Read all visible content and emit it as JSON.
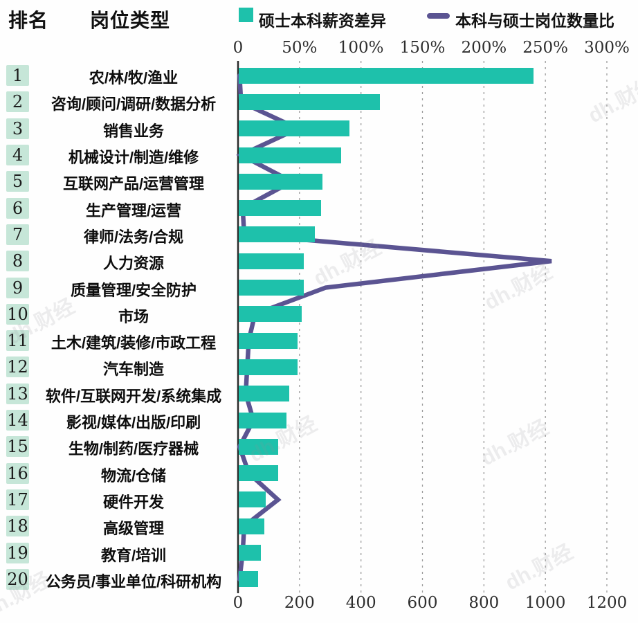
{
  "header": {
    "rank_col": "排名",
    "type_col": "岗位类型"
  },
  "legend": {
    "bar": {
      "label": "硕士本科薪资差异",
      "swatch": "teal-square-icon"
    },
    "line": {
      "label": "本科与硕士岗位数量比",
      "swatch": "purple-dash-icon"
    }
  },
  "watermark_text": "dh.财经",
  "colors": {
    "bar_teal": "#1ec1ab",
    "line_purple": "#5b5492",
    "rank_badge_bg": "#c6e6d8",
    "axis_line": "#2b2b2b",
    "gridline": "#9b9b9b"
  },
  "chart_data": {
    "type": "bar",
    "subtype": "horizontal bars with overlaid line series",
    "title": "",
    "legend_position": "top",
    "grid": "vertical dashed",
    "top_axis": {
      "series": "硕士本科薪资差异",
      "ticks": [
        "0",
        "50%",
        "100%",
        "150%",
        "200%",
        "250%",
        "300%"
      ],
      "range": [
        0,
        300
      ]
    },
    "bottom_axis": {
      "series": "本科与硕士岗位数量比",
      "ticks": [
        "0",
        "200",
        "400",
        "600",
        "800",
        "1000",
        "1200"
      ],
      "range": [
        0,
        1200
      ]
    },
    "categories": [
      "农/林/牧/渔业",
      "咨询/顾问/调研/数据分析",
      "销售业务",
      "机械设计/制造/维修",
      "互联网产品/运营管理",
      "生产管理/运营",
      "律师/法务/合规",
      "人力资源",
      "质量管理/安全防护",
      "市场",
      "土木/建筑/装修/市政工程",
      "汽车制造",
      "软件/互联网开发/系统集成",
      "影视/媒体/出版/印刷",
      "生物/制药/医疗器械",
      "物流/仓储",
      "硬件开发",
      "高级管理",
      "教育/培训",
      "公务员/事业单位/科研机构"
    ],
    "ranks": [
      1,
      2,
      3,
      4,
      5,
      6,
      7,
      8,
      9,
      10,
      11,
      12,
      13,
      14,
      15,
      16,
      17,
      18,
      19,
      20
    ],
    "series": [
      {
        "name": "硕士本科薪资差异",
        "type": "bar",
        "axis": "top",
        "unit": "%",
        "values": [
          240,
          115,
          90,
          83,
          68,
          67,
          62,
          53,
          53,
          51,
          48,
          48,
          41,
          39,
          32,
          32,
          22,
          21,
          18,
          16
        ]
      },
      {
        "name": "本科与硕士岗位数量比",
        "type": "line",
        "axis": "bottom",
        "unit": "",
        "values": [
          5,
          10,
          195,
          10,
          175,
          15,
          20,
          1020,
          285,
          55,
          35,
          30,
          25,
          50,
          5,
          35,
          130,
          20,
          15,
          5
        ]
      }
    ]
  }
}
